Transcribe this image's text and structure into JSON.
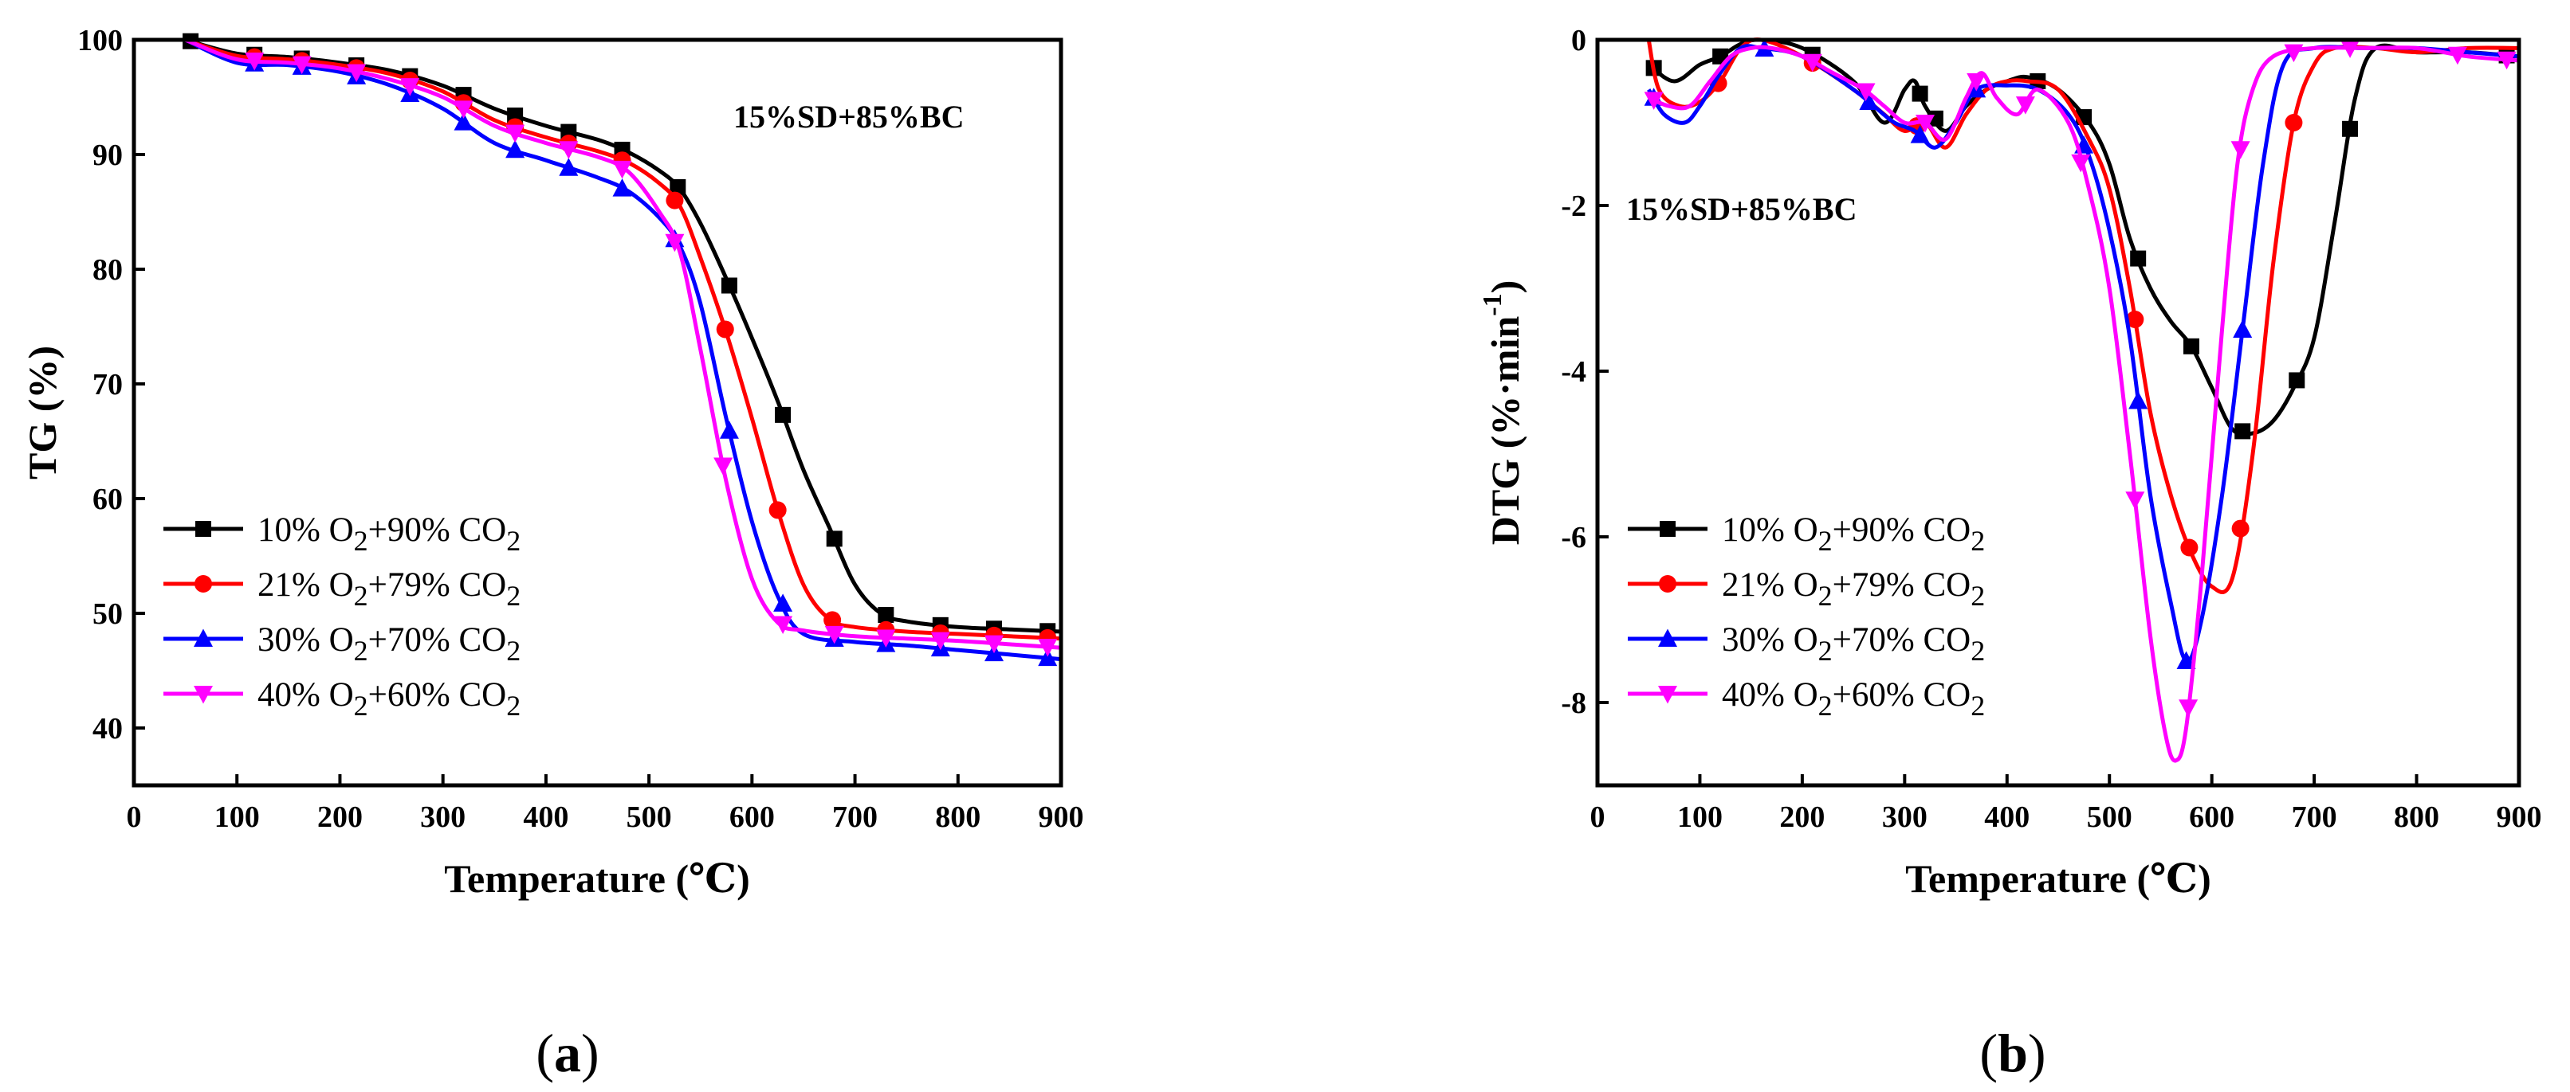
{
  "chart_data": [
    {
      "panel_label": "a",
      "type": "line",
      "annotation": "15%SD+85%BC",
      "xlabel": "Temperature (℃)",
      "ylabel": "TG (%)",
      "xlim": [
        0,
        900
      ],
      "ylim": [
        35,
        100
      ],
      "xticks": [
        0,
        100,
        200,
        300,
        400,
        500,
        600,
        700,
        800,
        900
      ],
      "yticks": [
        40,
        50,
        60,
        70,
        80,
        90,
        100
      ],
      "legend_position": "lower-left",
      "series": [
        {
          "name": "10% O2+90% CO2",
          "label_parts": [
            "10% O",
            "2",
            "+90% CO",
            "2"
          ],
          "color": "#000000",
          "marker": "square",
          "x": [
            50,
            100,
            150,
            200,
            250,
            300,
            350,
            400,
            450,
            480,
            510,
            530,
            550,
            575,
            600,
            625,
            650,
            675,
            700,
            725,
            750,
            800,
            850,
            900
          ],
          "y": [
            100,
            98.8,
            98.5,
            98.0,
            97.3,
            96.0,
            94.0,
            92.5,
            91.3,
            90.2,
            88.6,
            87.0,
            84.0,
            79.2,
            74.0,
            68.5,
            62.5,
            57.5,
            52.5,
            50.0,
            49.3,
            48.8,
            48.6,
            48.4
          ],
          "markers_x": [
            55,
            117,
            163,
            216,
            268,
            320,
            370,
            422,
            474,
            528,
            578,
            630,
            680,
            730,
            783,
            835,
            887
          ]
        },
        {
          "name": "21% O2+79% CO2",
          "label_parts": [
            "21% O",
            "2",
            "+79% CO",
            "2"
          ],
          "color": "#ff0000",
          "marker": "circle",
          "x": [
            50,
            100,
            150,
            200,
            250,
            300,
            350,
            400,
            450,
            480,
            510,
            530,
            550,
            575,
            600,
            625,
            650,
            675,
            700,
            750,
            800,
            850,
            900
          ],
          "y": [
            100,
            98.6,
            98.3,
            97.8,
            97.0,
            95.5,
            93.0,
            91.5,
            90.3,
            89.3,
            87.5,
            85.5,
            81.0,
            74.5,
            67.0,
            59.0,
            52.5,
            49.5,
            48.8,
            48.4,
            48.2,
            48.0,
            47.8
          ],
          "markers_x": [
            117,
            163,
            216,
            268,
            320,
            370,
            422,
            474,
            525,
            574,
            625,
            678,
            730,
            783,
            835,
            887
          ]
        },
        {
          "name": "30% O2+70% CO2",
          "label_parts": [
            "30% O",
            "2",
            "+70% CO",
            "2"
          ],
          "color": "#0000ff",
          "marker": "triangle-up",
          "x": [
            50,
            100,
            150,
            200,
            250,
            300,
            350,
            400,
            450,
            480,
            510,
            530,
            550,
            575,
            600,
            625,
            650,
            700,
            750,
            800,
            850,
            900
          ],
          "y": [
            100,
            98.0,
            97.8,
            97.2,
            96.0,
            94.0,
            91.0,
            89.5,
            88.0,
            86.8,
            84.5,
            82.0,
            77.0,
            67.0,
            58.0,
            51.5,
            48.2,
            47.5,
            47.2,
            46.8,
            46.4,
            46.0
          ],
          "markers_x": [
            117,
            163,
            216,
            268,
            320,
            370,
            422,
            474,
            525,
            578,
            630,
            680,
            730,
            783,
            835,
            887
          ]
        },
        {
          "name": "40% O2+60% CO2",
          "label_parts": [
            "40% O",
            "2",
            "+60% CO",
            "2"
          ],
          "color": "#ff00ff",
          "marker": "triangle-down",
          "x": [
            50,
            100,
            150,
            200,
            250,
            300,
            350,
            400,
            450,
            480,
            510,
            530,
            550,
            575,
            600,
            625,
            650,
            700,
            750,
            800,
            850,
            900
          ],
          "y": [
            100,
            98.3,
            98.0,
            97.5,
            96.5,
            95.0,
            92.5,
            91.0,
            89.8,
            88.5,
            85.0,
            81.5,
            73.0,
            61.5,
            53.0,
            49.2,
            48.5,
            48.0,
            47.8,
            47.6,
            47.3,
            47.0
          ],
          "markers_x": [
            117,
            163,
            216,
            268,
            320,
            370,
            422,
            474,
            525,
            572,
            630,
            680,
            730,
            783,
            835,
            887
          ]
        }
      ]
    },
    {
      "panel_label": "b",
      "type": "line",
      "annotation": "15%SD+85%BC",
      "xlabel": "Temperature (℃)",
      "ylabel_parts": [
        "DTG (%·min",
        "-1",
        ")"
      ],
      "xlim": [
        0,
        900
      ],
      "ylim": [
        -9,
        0
      ],
      "xticks": [
        0,
        100,
        200,
        300,
        400,
        500,
        600,
        700,
        800,
        900
      ],
      "yticks": [
        0,
        -2,
        -4,
        -6,
        -8
      ],
      "legend_position": "lower-left",
      "series": [
        {
          "name": "10% O2+90% CO2",
          "label_parts": [
            "10% O",
            "2",
            "+90% CO",
            "2"
          ],
          "color": "#000000",
          "marker": "square",
          "x": [
            50,
            75,
            100,
            120,
            140,
            160,
            200,
            250,
            280,
            300,
            310,
            320,
            340,
            360,
            380,
            400,
            420,
            450,
            480,
            500,
            520,
            540,
            560,
            580,
            600,
            620,
            640,
            660,
            680,
            700,
            720,
            740,
            760,
            800,
            850,
            900
          ],
          "y": [
            -0.3,
            -0.5,
            -0.3,
            -0.2,
            -0.05,
            0,
            -0.1,
            -0.5,
            -1.0,
            -0.6,
            -0.5,
            -0.8,
            -1.1,
            -0.8,
            -0.6,
            -0.5,
            -0.45,
            -0.6,
            -1.0,
            -1.5,
            -2.4,
            -3.0,
            -3.4,
            -3.7,
            -4.2,
            -4.7,
            -4.75,
            -4.6,
            -4.2,
            -3.6,
            -2.2,
            -0.7,
            -0.1,
            -0.15,
            -0.15,
            -0.2
          ],
          "markers_x": [
            55,
            120,
            210,
            315,
            330,
            430,
            475,
            528,
            580,
            630,
            683,
            735,
            888
          ]
        },
        {
          "name": "21% O2+79% CO2",
          "label_parts": [
            "21% O",
            "2",
            "+79% CO",
            "2"
          ],
          "color": "#ff0000",
          "marker": "circle",
          "x": [
            50,
            60,
            80,
            100,
            120,
            140,
            160,
            200,
            250,
            280,
            300,
            320,
            340,
            360,
            380,
            400,
            420,
            450,
            480,
            500,
            520,
            540,
            560,
            580,
            600,
            620,
            640,
            660,
            680,
            700,
            720,
            760,
            800,
            850,
            900
          ],
          "y": [
            0,
            -0.6,
            -0.8,
            -0.75,
            -0.5,
            -0.1,
            0,
            -0.2,
            -0.6,
            -0.9,
            -1.1,
            -1.0,
            -1.3,
            -0.9,
            -0.6,
            -0.5,
            -0.5,
            -0.6,
            -1.2,
            -1.8,
            -3.0,
            -4.5,
            -5.5,
            -6.2,
            -6.6,
            -6.5,
            -5.0,
            -2.7,
            -1.0,
            -0.3,
            -0.1,
            -0.1,
            -0.15,
            -0.1,
            -0.1
          ],
          "markers_x": [
            118,
            210,
            312,
            525,
            578,
            628,
            680
          ]
        },
        {
          "name": "30% O2+70% CO2",
          "label_parts": [
            "30% O",
            "2",
            "+70% CO",
            "2"
          ],
          "color": "#0000ff",
          "marker": "triangle-up",
          "x": [
            50,
            65,
            85,
            100,
            120,
            140,
            160,
            200,
            250,
            270,
            290,
            310,
            330,
            350,
            370,
            400,
            430,
            460,
            480,
            500,
            520,
            540,
            560,
            575,
            590,
            610,
            630,
            650,
            670,
            700,
            750,
            800,
            850,
            900
          ],
          "y": [
            -0.6,
            -0.9,
            -1.0,
            -0.8,
            -0.4,
            -0.1,
            -0.1,
            -0.2,
            -0.6,
            -0.8,
            -1.0,
            -1.1,
            -1.3,
            -1.0,
            -0.6,
            -0.55,
            -0.6,
            -0.9,
            -1.4,
            -2.3,
            -3.6,
            -5.5,
            -6.8,
            -7.5,
            -7.0,
            -5.5,
            -3.5,
            -1.5,
            -0.3,
            -0.1,
            -0.1,
            -0.1,
            -0.15,
            -0.2
          ],
          "markers_x": [
            55,
            163,
            265,
            315,
            370,
            475,
            528,
            575,
            630
          ]
        },
        {
          "name": "40% O2+60% CO2",
          "label_parts": [
            "40% O",
            "2",
            "+60% CO",
            "2"
          ],
          "color": "#ff00ff",
          "marker": "triangle-down",
          "x": [
            50,
            70,
            90,
            110,
            130,
            150,
            170,
            200,
            230,
            260,
            280,
            300,
            320,
            340,
            360,
            375,
            390,
            410,
            430,
            460,
            480,
            500,
            520,
            540,
            555,
            565,
            575,
            590,
            610,
            625,
            640,
            660,
            700,
            750,
            800,
            850,
            900
          ],
          "y": [
            -0.7,
            -0.8,
            -0.8,
            -0.5,
            -0.2,
            -0.1,
            -0.1,
            -0.2,
            -0.4,
            -0.6,
            -0.8,
            -1.0,
            -1.0,
            -1.2,
            -0.7,
            -0.4,
            -0.7,
            -0.9,
            -0.6,
            -1.0,
            -1.8,
            -3.0,
            -5.0,
            -7.2,
            -8.4,
            -8.7,
            -8.3,
            -6.5,
            -3.5,
            -1.5,
            -0.6,
            -0.2,
            -0.1,
            -0.1,
            -0.1,
            -0.2,
            -0.25
          ],
          "markers_x": [
            55,
            210,
            262,
            320,
            370,
            418,
            472,
            525,
            577,
            628,
            680,
            735,
            840,
            888
          ]
        }
      ]
    }
  ]
}
